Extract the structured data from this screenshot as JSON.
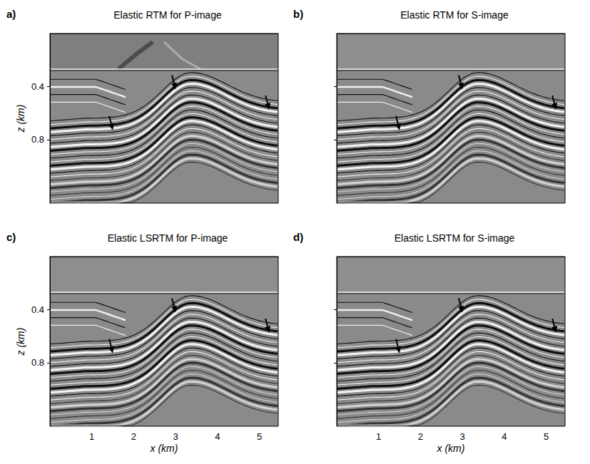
{
  "chart_data": [
    {
      "type": "image",
      "letter": "a)",
      "title": "Elastic RTM for P-image",
      "xlim": [
        0,
        5.45
      ],
      "xticks": [
        1,
        2,
        3,
        4,
        5
      ],
      "ylim": [
        0,
        1.28
      ],
      "yticks": [
        0.4,
        0.8
      ],
      "ylabel": "z (km)",
      "tick_labels": "y"
    },
    {
      "type": "image",
      "letter": "b)",
      "title": "Elastic RTM for S-image",
      "xlim": [
        0,
        5.45
      ],
      "xticks": [
        1,
        2,
        3,
        4,
        5
      ],
      "ylim": [
        0,
        1.28
      ],
      "yticks": [
        0.4,
        0.8
      ],
      "tick_labels": false
    },
    {
      "type": "image",
      "letter": "c)",
      "title": "Elastic LSRTM for P-image",
      "xlim": [
        0,
        5.45
      ],
      "xticks": [
        1,
        2,
        3,
        4,
        5
      ],
      "ylim": [
        0,
        1.28
      ],
      "yticks": [
        0.4,
        0.8
      ],
      "xlabel": "x (km)",
      "ylabel": "z (km)"
    },
    {
      "type": "image",
      "letter": "d)",
      "title": "Elastic LSRTM for S-image",
      "xlim": [
        0,
        5.45
      ],
      "xticks": [
        1,
        2,
        3,
        4,
        5
      ],
      "ylim": [
        0,
        1.28
      ],
      "yticks": [
        0.4,
        0.8
      ],
      "xlabel": "x (km)",
      "tick_labels": "x"
    }
  ]
}
